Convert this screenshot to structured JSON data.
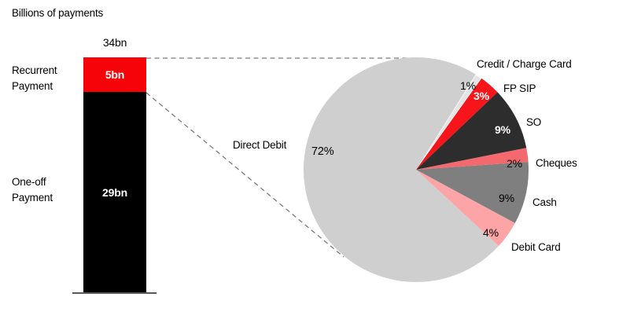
{
  "chart_data": [
    {
      "type": "bar",
      "subtype": "stacked-column",
      "title": "Billions of payments",
      "total_bn": 34,
      "total_label": "34bn",
      "segments": [
        {
          "name": "Recurrent Payment",
          "value_bn": 5,
          "value_label": "5bn",
          "color": "#f50309",
          "text_color": "#ffffff"
        },
        {
          "name": "One-off Payment",
          "value_bn": 29,
          "value_label": "29bn",
          "color": "#000000",
          "text_color": "#ffffff"
        }
      ]
    },
    {
      "type": "pie",
      "start_angle_deg": 32,
      "clockwise": true,
      "slices": [
        {
          "label": "Credit / Charge Card",
          "pct": 1,
          "pct_label": "1%",
          "color": "#e4e4e4",
          "stroke": "#ffffff"
        },
        {
          "label": "FP SIP",
          "pct": 3,
          "pct_label": "3%",
          "color": "#f6151b"
        },
        {
          "label": "SO",
          "pct": 9,
          "pct_label": "9%",
          "color": "#2d2d2d"
        },
        {
          "label": "Cheques",
          "pct": 2,
          "pct_label": "2%",
          "color": "#f4696e"
        },
        {
          "label": "Cash",
          "pct": 9,
          "pct_label": "9%",
          "color": "#7f7f7f"
        },
        {
          "label": "Debit Card",
          "pct": 4,
          "pct_label": "4%",
          "color": "#fca4a6"
        },
        {
          "label": "Direct Debit",
          "pct": 72,
          "pct_label": "72%",
          "color": "#cfcfcf"
        }
      ]
    }
  ],
  "colors": {
    "baseline": "#595959",
    "callout_dash": "#7a7a7a",
    "text": "#000000",
    "background": "#ffffff"
  }
}
